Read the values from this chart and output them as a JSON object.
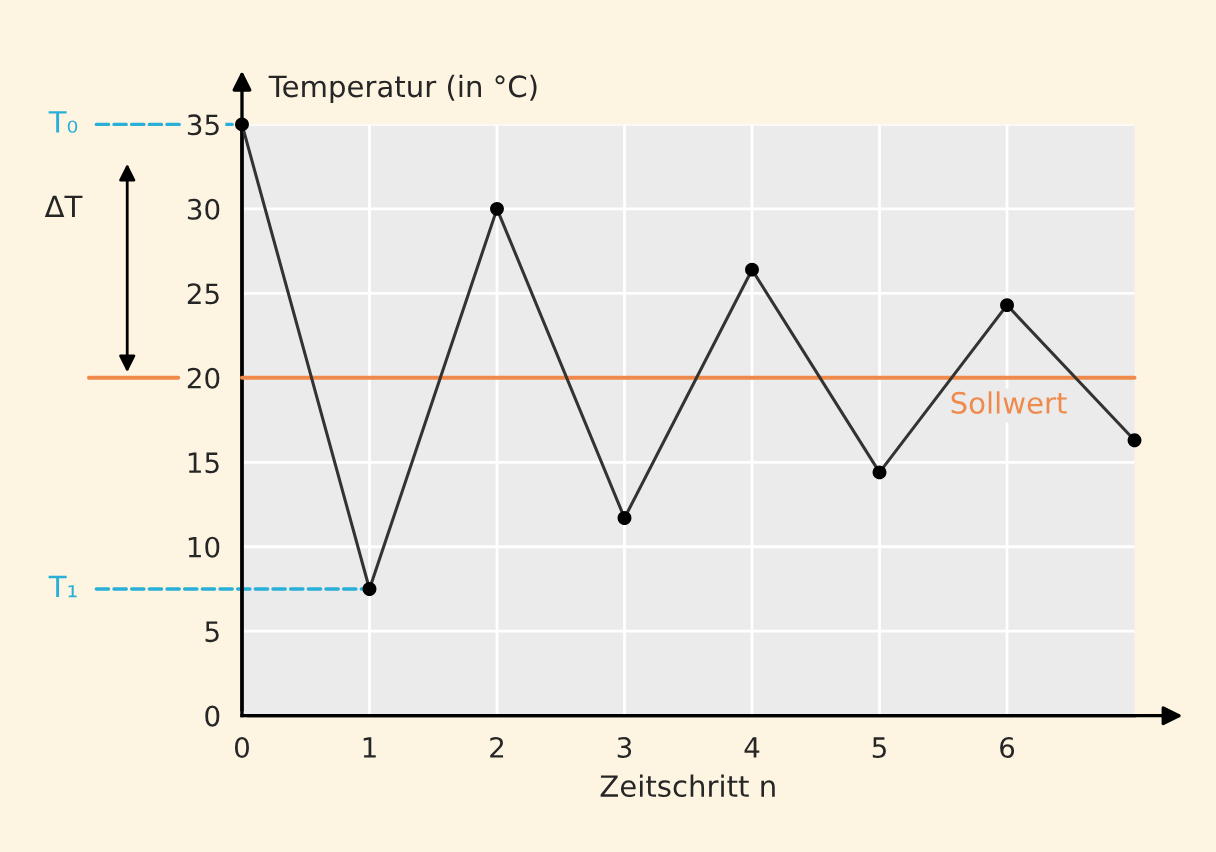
{
  "chart_data": {
    "type": "line",
    "xlabel": "Zeitschritt n",
    "ylabel": "Temperatur (in °C)",
    "x": [
      0,
      1,
      2,
      3,
      4,
      5,
      6,
      7
    ],
    "series": [
      {
        "color": "#333333",
        "values": [
          35,
          7.5,
          30,
          11.7,
          26.4,
          14.4,
          24.3,
          16.3
        ]
      }
    ],
    "xlim": [
      0,
      7
    ],
    "xticks": [
      0,
      1,
      2,
      3,
      4,
      5,
      6
    ],
    "ylim": [
      0,
      35
    ],
    "yticks": [
      0,
      5,
      10,
      15,
      20,
      25,
      30,
      35
    ],
    "grid": true,
    "marker": "circle",
    "line_style": "solid",
    "ref_lines": [
      {
        "axis": "y",
        "value": 20,
        "label": "Sollwert",
        "color": "#f08a4b"
      }
    ],
    "annotations": [
      {
        "text": "T₀",
        "x": 0,
        "y": 35
      },
      {
        "text": "T₁",
        "x": 1,
        "y": 7.5
      },
      "ΔT"
    ]
  }
}
